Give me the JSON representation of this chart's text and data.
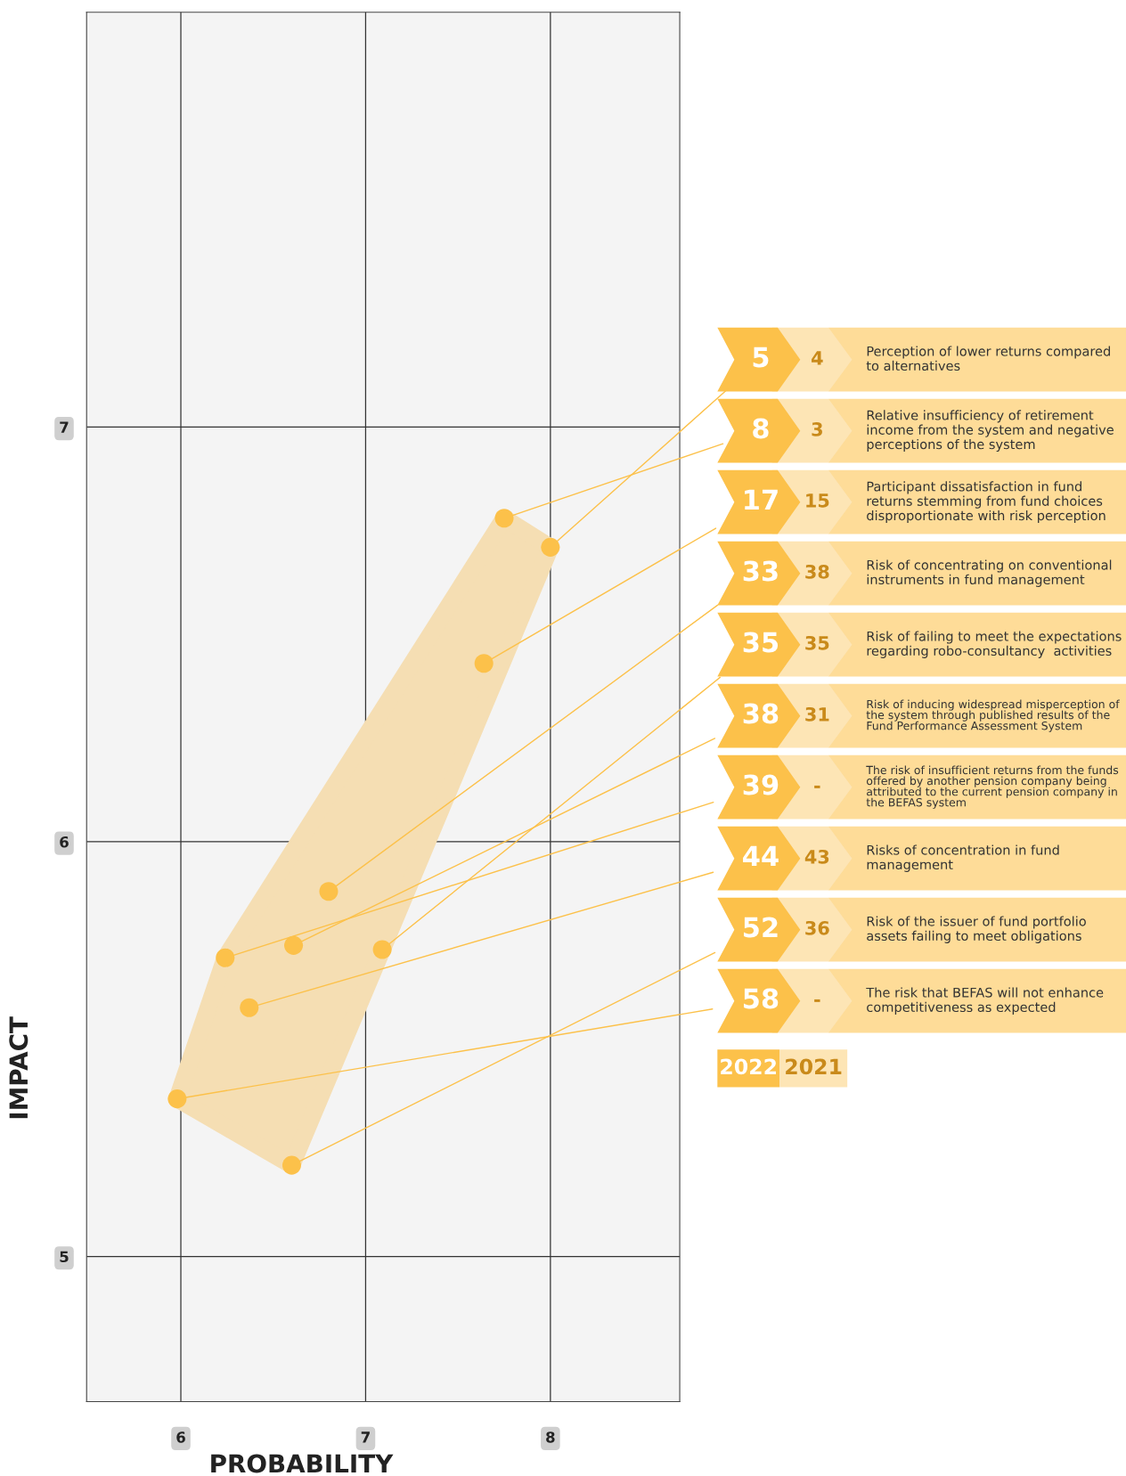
{
  "chart_data": {
    "type": "scatter",
    "xlabel": "PROBABILITY",
    "ylabel": "IMPACT",
    "x": [
      8.0,
      7.75,
      7.64,
      6.8,
      7.09,
      6.61,
      6.24,
      6.37,
      6.6,
      5.98
    ],
    "values": [
      6.71,
      6.78,
      6.43,
      5.88,
      5.74,
      5.75,
      5.72,
      5.6,
      5.22,
      5.38
    ],
    "color": "#fcc14a",
    "marker": "circle",
    "grid": true,
    "xlim": [
      5.49,
      8.7
    ],
    "ylim": [
      4.65,
      8.0
    ],
    "xticks": [
      6,
      7,
      8
    ],
    "yticks": [
      5,
      6,
      7
    ],
    "annotations": [
      {
        "text": "5",
        "x": 8.0,
        "y": 6.71
      },
      "4",
      "Perception of lower returns compared to alternatives",
      {
        "text": "8",
        "x": 7.75,
        "y": 6.78
      },
      "3",
      "Relative insufficiency of retirement income from the system and negative perceptions of the system",
      {
        "text": "17",
        "x": 7.64,
        "y": 6.43
      },
      "15",
      "Participant dissatisfaction in fund returns stemming from fund choices disproportionate with risk perception",
      {
        "text": "33",
        "x": 6.8,
        "y": 5.88
      },
      "38",
      "Risk of concentrating on conventional instruments in fund management",
      {
        "text": "35",
        "x": 7.09,
        "y": 5.74
      },
      "35",
      "Risk of failing to meet the expectations regarding robo-consultancy  activities",
      {
        "text": "38",
        "x": 6.61,
        "y": 5.75
      },
      "31",
      "Risk of inducing widespread misperception of the system through published results of the Fund Performance Assessment System",
      {
        "text": "39",
        "x": 6.24,
        "y": 5.72
      },
      "-",
      "The risk of insufficient returns from the funds offered by another pension company being attributed to the current pension company in the BEFAS system",
      {
        "text": "44",
        "x": 6.37,
        "y": 5.6
      },
      "43",
      "Risks of concentration in fund management",
      {
        "text": "52",
        "x": 6.6,
        "y": 5.22
      },
      "36",
      "Risk of the issuer of fund portfolio assets failing to meet obligations",
      {
        "text": "58",
        "x": 5.98,
        "y": 5.38
      },
      "-",
      "The risk that BEFAS will not enhance competitiveness as expected",
      "2022",
      "2021"
    ]
  }
}
